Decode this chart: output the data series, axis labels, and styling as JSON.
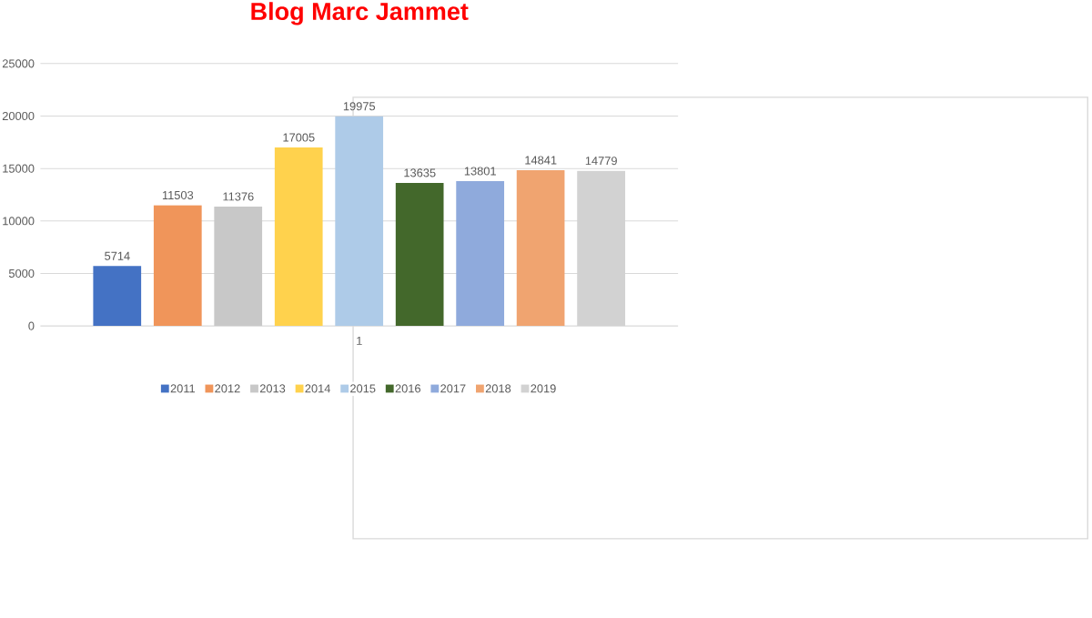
{
  "chart_data": {
    "type": "bar",
    "title": "Blog Marc Jammet",
    "categories": [
      "1"
    ],
    "series": [
      {
        "name": "2011",
        "color": "#4472c4",
        "values": [
          5714
        ]
      },
      {
        "name": "2012",
        "color": "#f0955a",
        "values": [
          11503
        ]
      },
      {
        "name": "2013",
        "color": "#c8c8c8",
        "values": [
          11376
        ]
      },
      {
        "name": "2014",
        "color": "#ffd24d",
        "values": [
          17005
        ]
      },
      {
        "name": "2015",
        "color": "#aecbe8",
        "values": [
          19975
        ]
      },
      {
        "name": "2016",
        "color": "#43682b",
        "values": [
          13635
        ]
      },
      {
        "name": "2017",
        "color": "#8faadc",
        "values": [
          13801
        ]
      },
      {
        "name": "2018",
        "color": "#f0a470",
        "values": [
          14841
        ]
      },
      {
        "name": "2019",
        "color": "#d2d2d2",
        "values": [
          14779
        ]
      }
    ],
    "ylim": [
      0,
      25000
    ],
    "yticks": [
      0,
      5000,
      10000,
      15000,
      20000,
      25000
    ],
    "grid": "y",
    "legend": "bottom",
    "data_labels": true
  }
}
